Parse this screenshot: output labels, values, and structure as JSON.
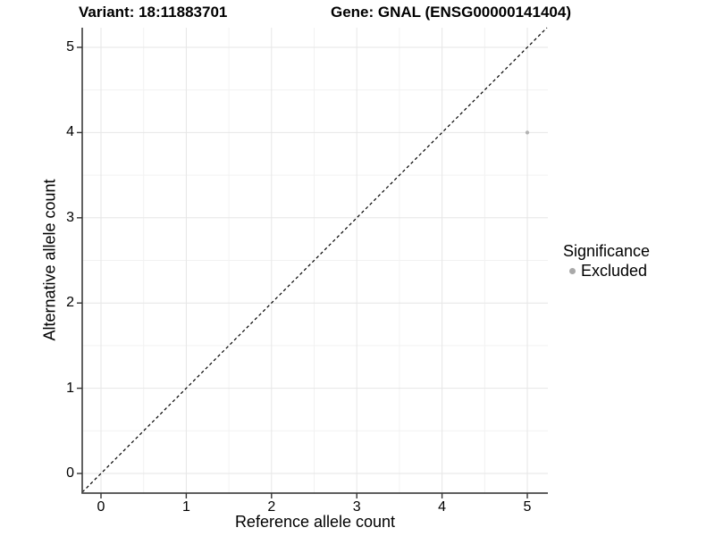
{
  "chart_data": {
    "type": "scatter",
    "title_left": "Variant: 18:11883701",
    "title_right": "Gene: GNAL (ENSG00000141404)",
    "xlabel": "Reference allele count",
    "ylabel": "Alternative allele count",
    "xlim": [
      -0.25,
      5.25
    ],
    "ylim": [
      -0.25,
      5.25
    ],
    "xticks": [
      0,
      1,
      2,
      3,
      4,
      5
    ],
    "yticks": [
      0,
      1,
      2,
      3,
      4,
      5
    ],
    "minor_gridlines_at": [
      0.5,
      1.5,
      2.5,
      3.5,
      4.5
    ],
    "grid": true,
    "aspect_ratio": 1,
    "points": [
      {
        "x": 5,
        "y": 4,
        "significance": "Excluded"
      }
    ],
    "reference_line": {
      "type": "identity",
      "slope": 1,
      "intercept": 0,
      "style": "dashed",
      "color": "#000000"
    },
    "legend": {
      "position": "right",
      "title": "Significance",
      "entries": [
        {
          "label": "Excluded",
          "color": "#a9a9a9",
          "marker": "circle"
        }
      ]
    },
    "colors": {
      "point": "#b3b3b3",
      "grid_major": "#e6e6e6",
      "grid_minor": "#f2f2f2",
      "axis_line": "#474747",
      "tick_mark": "#333333",
      "text": "#000000"
    }
  }
}
